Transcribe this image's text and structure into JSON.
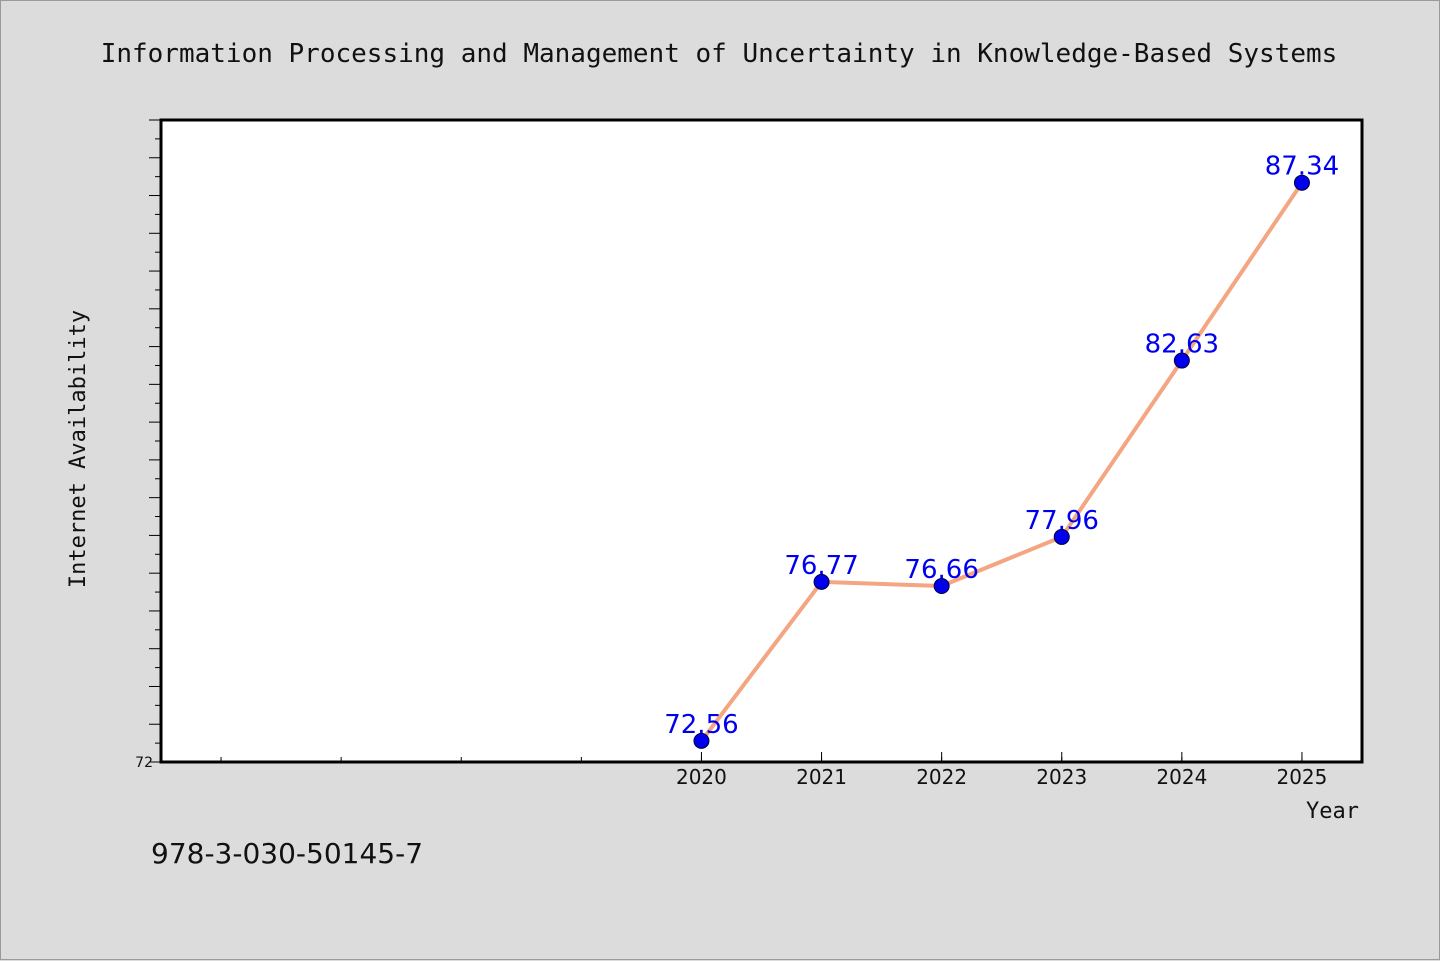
{
  "chart_data": {
    "type": "line",
    "title": "Information Processing and Management of Uncertainty in Knowledge-Based Systems",
    "xlabel": "Year",
    "ylabel": "Internet Availability",
    "categories": [
      "2020",
      "2021",
      "2022",
      "2023",
      "2024",
      "2025"
    ],
    "series": [
      {
        "values": [
          72.56,
          76.77,
          76.66,
          77.96,
          82.63,
          87.34
        ]
      }
    ],
    "value_labels": [
      "72.56",
      "76.77",
      "76.66",
      "77.96",
      "82.63",
      "87.34"
    ],
    "ylim": [
      72,
      89
    ],
    "y_tick_labels": [
      "72"
    ],
    "xlim": [
      2015.5,
      2025.5
    ],
    "grid": false,
    "line_color": "#f4a582",
    "marker_color": "#0000ee",
    "label_color": "#0000ee"
  },
  "footer": {
    "isbn": "978-3-030-50145-7"
  }
}
